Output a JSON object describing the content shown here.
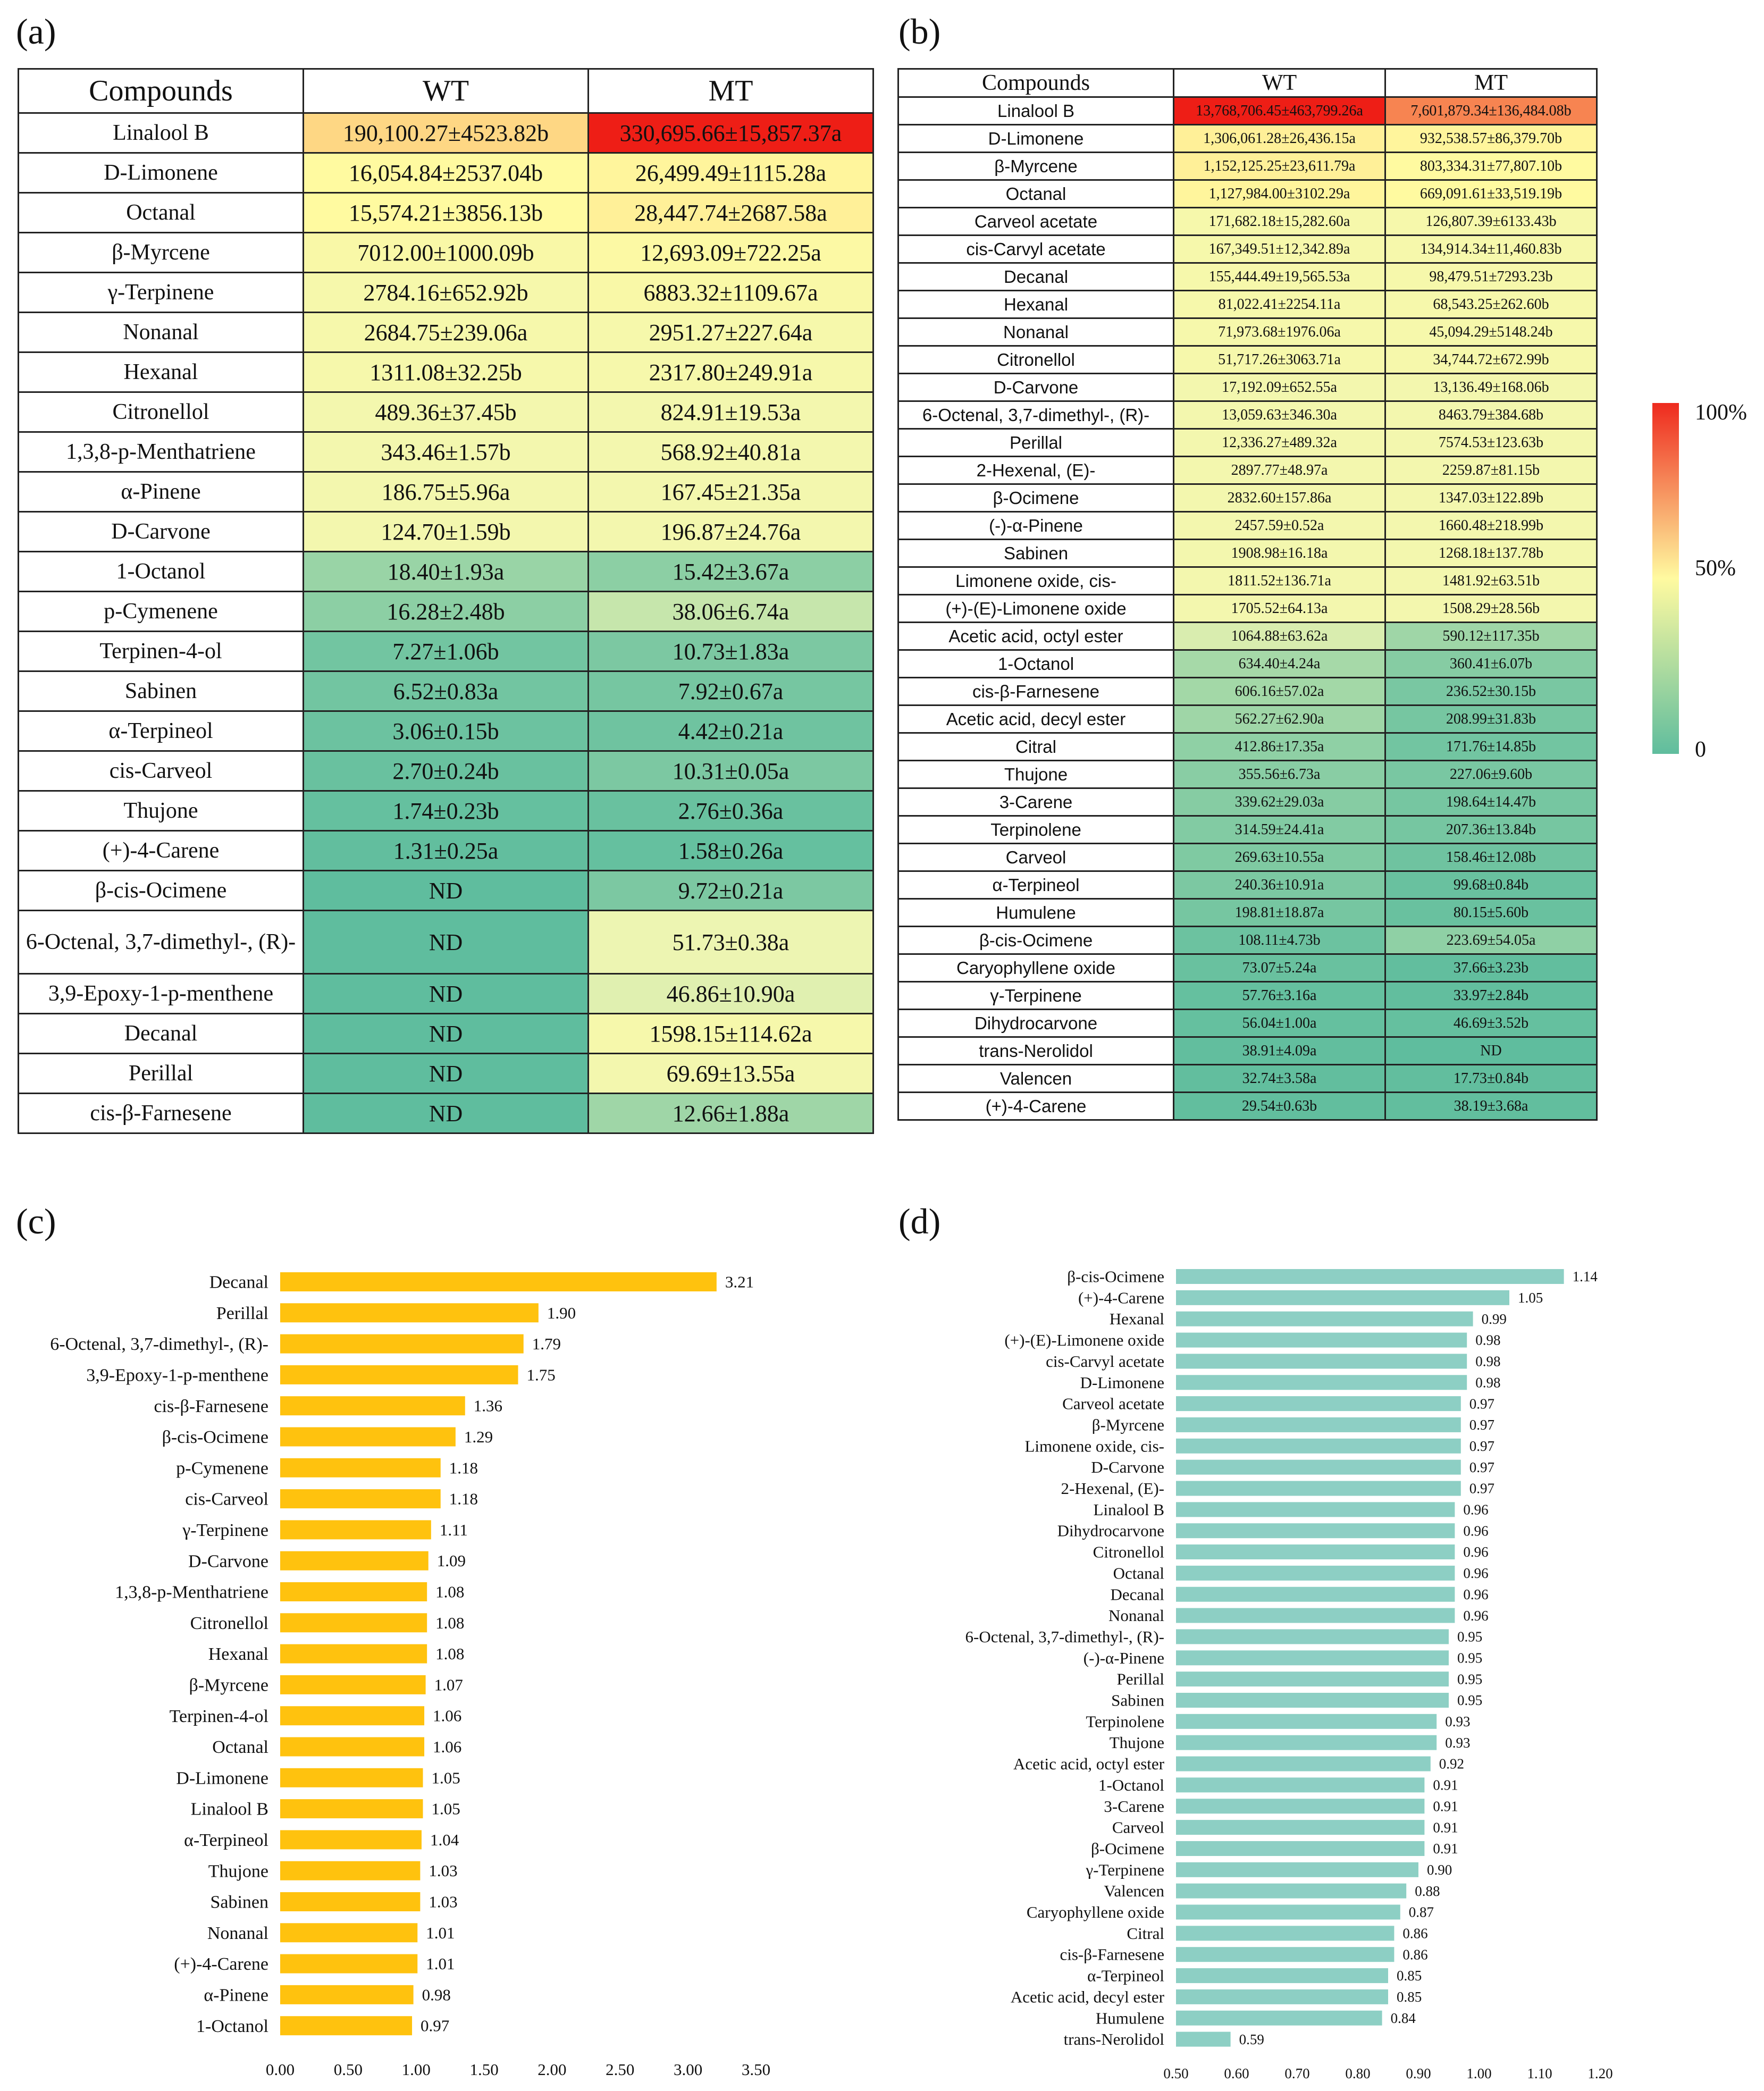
{
  "panels": {
    "a": "(a)",
    "b": "(b)",
    "c": "(c)",
    "d": "(d)"
  },
  "table_a": {
    "headers": [
      "Compounds",
      "WT",
      "MT"
    ],
    "rows": [
      {
        "name": "Linalool B",
        "wt": "190,100.27±4523.82b",
        "mt": "330,695.66±15,857.37a",
        "wt_pct": 0.57,
        "mt_pct": 1.0
      },
      {
        "name": "D-Limonene",
        "wt": "16,054.84±2537.04b",
        "mt": "26,499.49±1115.28a",
        "wt_pct": 0.5,
        "mt_pct": 0.51
      },
      {
        "name": "Octanal",
        "wt": "15,574.21±3856.13b",
        "mt": "28,447.74±2687.58a",
        "wt_pct": 0.5,
        "mt_pct": 0.52
      },
      {
        "name": "β-Myrcene",
        "wt": "7012.00±1000.09b",
        "mt": "12,693.09±722.25a",
        "wt_pct": 0.48,
        "mt_pct": 0.49
      },
      {
        "name": "γ-Terpinene",
        "wt": "2784.16±652.92b",
        "mt": "6883.32±1109.67a",
        "wt_pct": 0.47,
        "mt_pct": 0.48
      },
      {
        "name": "Nonanal",
        "wt": "2684.75±239.06a",
        "mt": "2951.27±227.64a",
        "wt_pct": 0.47,
        "mt_pct": 0.47
      },
      {
        "name": "Hexanal",
        "wt": "1311.08±32.25b",
        "mt": "2317.80±249.91a",
        "wt_pct": 0.47,
        "mt_pct": 0.47
      },
      {
        "name": "Citronellol",
        "wt": "489.36±37.45b",
        "mt": "824.91±19.53a",
        "wt_pct": 0.46,
        "mt_pct": 0.46
      },
      {
        "name": "1,3,8-p-Menthatriene",
        "wt": "343.46±1.57b",
        "mt": "568.92±40.81a",
        "wt_pct": 0.46,
        "mt_pct": 0.46
      },
      {
        "name": "α-Pinene",
        "wt": "186.75±5.96a",
        "mt": "167.45±21.35a",
        "wt_pct": 0.46,
        "mt_pct": 0.46
      },
      {
        "name": "D-Carvone",
        "wt": "124.70±1.59b",
        "mt": "196.87±24.76a",
        "wt_pct": 0.46,
        "mt_pct": 0.46
      },
      {
        "name": "1-Octanol",
        "wt": "18.40±1.93a",
        "mt": "15.42±3.67a",
        "wt_pct": 0.18,
        "mt_pct": 0.14
      },
      {
        "name": "p-Cymenene",
        "wt": "16.28±2.48b",
        "mt": "38.06±6.74a",
        "wt_pct": 0.14,
        "mt_pct": 0.32
      },
      {
        "name": "Terpinen-4-ol",
        "wt": "7.27±1.06b",
        "mt": "10.73±1.83a",
        "wt_pct": 0.06,
        "mt_pct": 0.09
      },
      {
        "name": "Sabinen",
        "wt": "6.52±0.83a",
        "mt": "7.92±0.67a",
        "wt_pct": 0.06,
        "mt_pct": 0.07
      },
      {
        "name": "α-Terpineol",
        "wt": "3.06±0.15b",
        "mt": "4.42±0.21a",
        "wt_pct": 0.04,
        "mt_pct": 0.05
      },
      {
        "name": "cis-Carveol",
        "wt": "2.70±0.24b",
        "mt": "10.31±0.05a",
        "wt_pct": 0.03,
        "mt_pct": 0.09
      },
      {
        "name": "Thujone",
        "wt": "1.74±0.23b",
        "mt": "2.76±0.36a",
        "wt_pct": 0.02,
        "mt_pct": 0.03
      },
      {
        "name": "(+)-4-Carene",
        "wt": "1.31±0.25a",
        "mt": "1.58±0.26a",
        "wt_pct": 0.01,
        "mt_pct": 0.02
      },
      {
        "name": "β-cis-Ocimene",
        "wt": "ND",
        "mt": "9.72±0.21a",
        "wt_pct": 0.0,
        "mt_pct": 0.09
      },
      {
        "name": "6-Octenal, 3,7-dimethyl-, (R)-",
        "wt": "ND",
        "mt": "51.73±0.38a",
        "wt_pct": 0.0,
        "mt_pct": 0.44
      },
      {
        "name": "3,9-Epoxy-1-p-menthene",
        "wt": "ND",
        "mt": "46.86±10.90a",
        "wt_pct": 0.0,
        "mt_pct": 0.4
      },
      {
        "name": "Decanal",
        "wt": "ND",
        "mt": "1598.15±114.62a",
        "wt_pct": 0.0,
        "mt_pct": 0.47
      },
      {
        "name": "Perillal",
        "wt": "ND",
        "mt": "69.69±13.55a",
        "wt_pct": 0.0,
        "mt_pct": 0.46
      },
      {
        "name": "cis-β-Farnesene",
        "wt": "ND",
        "mt": "12.66±1.88a",
        "wt_pct": 0.0,
        "mt_pct": 0.2
      }
    ]
  },
  "table_b": {
    "headers": [
      "Compounds",
      "WT",
      "MT"
    ],
    "rows": [
      {
        "name": "Linalool B",
        "wt": "13,768,706.45±463,799.26a",
        "mt": "7,601,879.34±136,484.08b",
        "wt_pct": 1.0,
        "mt_pct": 0.76
      },
      {
        "name": "D-Limonene",
        "wt": "1,306,061.28±26,436.15a",
        "mt": "932,538.57±86,379.70b",
        "wt_pct": 0.52,
        "mt_pct": 0.51
      },
      {
        "name": "β-Myrcene",
        "wt": "1,152,125.25±23,611.79a",
        "mt": "803,334.31±77,807.10b",
        "wt_pct": 0.52,
        "mt_pct": 0.5
      },
      {
        "name": "Octanal",
        "wt": "1,127,984.00±3102.29a",
        "mt": "669,091.61±33,519.19b",
        "wt_pct": 0.51,
        "mt_pct": 0.5
      },
      {
        "name": "Carveol acetate",
        "wt": "171,682.18±15,282.60a",
        "mt": "126,807.39±6133.43b",
        "wt_pct": 0.47,
        "mt_pct": 0.47
      },
      {
        "name": "cis-Carvyl acetate",
        "wt": "167,349.51±12,342.89a",
        "mt": "134,914.34±11,460.83b",
        "wt_pct": 0.47,
        "mt_pct": 0.47
      },
      {
        "name": "Decanal",
        "wt": "155,444.49±19,565.53a",
        "mt": "98,479.51±7293.23b",
        "wt_pct": 0.47,
        "mt_pct": 0.47
      },
      {
        "name": "Hexanal",
        "wt": "81,022.41±2254.11a",
        "mt": "68,543.25±262.60b",
        "wt_pct": 0.47,
        "mt_pct": 0.47
      },
      {
        "name": "Nonanal",
        "wt": "71,973.68±1976.06a",
        "mt": "45,094.29±5148.24b",
        "wt_pct": 0.47,
        "mt_pct": 0.47
      },
      {
        "name": "Citronellol",
        "wt": "51,717.26±3063.71a",
        "mt": "34,744.72±672.99b",
        "wt_pct": 0.47,
        "mt_pct": 0.47
      },
      {
        "name": "D-Carvone",
        "wt": "17,192.09±652.55a",
        "mt": "13,136.49±168.06b",
        "wt_pct": 0.46,
        "mt_pct": 0.46
      },
      {
        "name": "6-Octenal, 3,7-dimethyl-, (R)-",
        "wt": "13,059.63±346.30a",
        "mt": "8463.79±384.68b",
        "wt_pct": 0.46,
        "mt_pct": 0.46
      },
      {
        "name": "Perillal",
        "wt": "12,336.27±489.32a",
        "mt": "7574.53±123.63b",
        "wt_pct": 0.46,
        "mt_pct": 0.46
      },
      {
        "name": "2-Hexenal, (E)-",
        "wt": "2897.77±48.97a",
        "mt": "2259.87±81.15b",
        "wt_pct": 0.46,
        "mt_pct": 0.46
      },
      {
        "name": "β-Ocimene",
        "wt": "2832.60±157.86a",
        "mt": "1347.03±122.89b",
        "wt_pct": 0.46,
        "mt_pct": 0.46
      },
      {
        "name": "(-)-α-Pinene",
        "wt": "2457.59±0.52a",
        "mt": "1660.48±218.99b",
        "wt_pct": 0.46,
        "mt_pct": 0.46
      },
      {
        "name": "Sabinen",
        "wt": "1908.98±16.18a",
        "mt": "1268.18±137.78b",
        "wt_pct": 0.46,
        "mt_pct": 0.46
      },
      {
        "name": "Limonene oxide, cis-",
        "wt": "1811.52±136.71a",
        "mt": "1481.92±63.51b",
        "wt_pct": 0.46,
        "mt_pct": 0.46
      },
      {
        "name": "(+)-(E)-Limonene oxide",
        "wt": "1705.52±64.13a",
        "mt": "1508.29±28.56b",
        "wt_pct": 0.46,
        "mt_pct": 0.46
      },
      {
        "name": "Acetic acid, octyl ester",
        "wt": "1064.88±63.62a",
        "mt": "590.12±117.35b",
        "wt_pct": 0.38,
        "mt_pct": 0.2
      },
      {
        "name": "1-Octanol",
        "wt": "634.40±4.24a",
        "mt": "360.41±6.07b",
        "wt_pct": 0.22,
        "mt_pct": 0.12
      },
      {
        "name": "cis-β-Farnesene",
        "wt": "606.16±57.02a",
        "mt": "236.52±30.15b",
        "wt_pct": 0.21,
        "mt_pct": 0.08
      },
      {
        "name": "Acetic acid, decyl ester",
        "wt": "562.27±62.90a",
        "mt": "208.99±31.83b",
        "wt_pct": 0.2,
        "mt_pct": 0.07
      },
      {
        "name": "Citral",
        "wt": "412.86±17.35a",
        "mt": "171.76±14.85b",
        "wt_pct": 0.15,
        "mt_pct": 0.06
      },
      {
        "name": "Thujone",
        "wt": "355.56±6.73a",
        "mt": "227.06±9.60b",
        "wt_pct": 0.13,
        "mt_pct": 0.08
      },
      {
        "name": "3-Carene",
        "wt": "339.62±29.03a",
        "mt": "198.64±14.47b",
        "wt_pct": 0.12,
        "mt_pct": 0.07
      },
      {
        "name": "Terpinolene",
        "wt": "314.59±24.41a",
        "mt": "207.36±13.84b",
        "wt_pct": 0.11,
        "mt_pct": 0.07
      },
      {
        "name": "Carveol",
        "wt": "269.63±10.55a",
        "mt": "158.46±12.08b",
        "wt_pct": 0.1,
        "mt_pct": 0.05
      },
      {
        "name": "α-Terpineol",
        "wt": "240.36±10.91a",
        "mt": "99.68±0.84b",
        "wt_pct": 0.09,
        "mt_pct": 0.03
      },
      {
        "name": "Humulene",
        "wt": "198.81±18.87a",
        "mt": "80.15±5.60b",
        "wt_pct": 0.07,
        "mt_pct": 0.03
      },
      {
        "name": "β-cis-Ocimene",
        "wt": "108.11±4.73b",
        "mt": "223.69±54.05a",
        "wt_pct": 0.04,
        "mt_pct": 0.15
      },
      {
        "name": "Caryophyllene oxide",
        "wt": "73.07±5.24a",
        "mt": "37.66±3.23b",
        "wt_pct": 0.03,
        "mt_pct": 0.01
      },
      {
        "name": "γ-Terpinene",
        "wt": "57.76±3.16a",
        "mt": "33.97±2.84b",
        "wt_pct": 0.02,
        "mt_pct": 0.01
      },
      {
        "name": "Dihydrocarvone",
        "wt": "56.04±1.00a",
        "mt": "46.69±3.52b",
        "wt_pct": 0.02,
        "mt_pct": 0.02
      },
      {
        "name": "trans-Nerolidol",
        "wt": "38.91±4.09a",
        "mt": "ND",
        "wt_pct": 0.01,
        "mt_pct": 0.0
      },
      {
        "name": "Valencen",
        "wt": "32.74±3.58a",
        "mt": "17.73±0.84b",
        "wt_pct": 0.01,
        "mt_pct": 0.01
      },
      {
        "name": "(+)-4-Carene",
        "wt": "29.54±0.63b",
        "mt": "38.19±3.68a",
        "wt_pct": 0.01,
        "mt_pct": 0.01
      }
    ]
  },
  "legend": {
    "labels": [
      "100%",
      "50%",
      "0"
    ],
    "colors": [
      "#ee2a1e",
      "#fffaa0",
      "#5fbd9e"
    ]
  },
  "chart_data": [
    {
      "type": "bar",
      "orientation": "horizontal",
      "panel": "c",
      "color": "#ffc20e",
      "categories": [
        "Decanal",
        "Perillal",
        "6-Octenal, 3,7-dimethyl-, (R)-",
        "3,9-Epoxy-1-p-menthene",
        "cis-β-Farnesene",
        "β-cis-Ocimene",
        "p-Cymenene",
        "cis-Carveol",
        "γ-Terpinene",
        "D-Carvone",
        "1,3,8-p-Menthatriene",
        "Citronellol",
        "Hexanal",
        "β-Myrcene",
        "Terpinen-4-ol",
        "Octanal",
        "D-Limonene",
        "Linalool B",
        "α-Terpineol",
        "Thujone",
        "Sabinen",
        "Nonanal",
        "(+)-4-Carene",
        "α-Pinene",
        "1-Octanol"
      ],
      "values": [
        3.21,
        1.9,
        1.79,
        1.75,
        1.36,
        1.29,
        1.18,
        1.18,
        1.11,
        1.09,
        1.08,
        1.08,
        1.08,
        1.07,
        1.06,
        1.06,
        1.05,
        1.05,
        1.04,
        1.03,
        1.03,
        1.01,
        1.01,
        0.98,
        0.97
      ],
      "labels": [
        "3.21",
        "1.90",
        "1.79",
        "1.75",
        "1.36",
        "1.29",
        "1.18",
        "1.18",
        "1.11",
        "1.09",
        "1.08",
        "1.08",
        "1.08",
        "1.07",
        "1.06",
        "1.06",
        "1.05",
        "1.05",
        "1.04",
        "1.03",
        "1.03",
        "1.01",
        "1.01",
        "0.98",
        "0.97"
      ],
      "xlim": [
        0,
        3.5
      ],
      "ticks": [
        "0.00",
        "0.50",
        "1.00",
        "1.50",
        "2.00",
        "2.50",
        "3.00",
        "3.50"
      ]
    },
    {
      "type": "bar",
      "orientation": "horizontal",
      "panel": "d",
      "color": "#8dcfc4",
      "categories": [
        "β-cis-Ocimene",
        "(+)-4-Carene",
        "Hexanal",
        "(+)-(E)-Limonene oxide",
        "cis-Carvyl acetate",
        "D-Limonene",
        "Carveol acetate",
        "β-Myrcene",
        "Limonene oxide, cis-",
        "D-Carvone",
        "2-Hexenal, (E)-",
        "Linalool B",
        "Dihydrocarvone",
        "Citronellol",
        "Octanal",
        "Decanal",
        "Nonanal",
        "6-Octenal, 3,7-dimethyl-, (R)-",
        "(-)-α-Pinene",
        "Perillal",
        "Sabinen",
        "Terpinolene",
        "Thujone",
        "Acetic acid, octyl ester",
        "1-Octanol",
        "3-Carene",
        "Carveol",
        "β-Ocimene",
        "γ-Terpinene",
        "Valencen",
        "Caryophyllene oxide",
        "Citral",
        "cis-β-Farnesene",
        "α-Terpineol",
        "Acetic acid, decyl ester",
        "Humulene",
        "trans-Nerolidol"
      ],
      "values": [
        1.14,
        1.05,
        0.99,
        0.98,
        0.98,
        0.98,
        0.97,
        0.97,
        0.97,
        0.97,
        0.97,
        0.96,
        0.96,
        0.96,
        0.96,
        0.96,
        0.96,
        0.95,
        0.95,
        0.95,
        0.95,
        0.93,
        0.93,
        0.92,
        0.91,
        0.91,
        0.91,
        0.91,
        0.9,
        0.88,
        0.87,
        0.86,
        0.86,
        0.85,
        0.85,
        0.84,
        0.59
      ],
      "labels": [
        "1.14",
        "1.05",
        "0.99",
        "0.98",
        "0.98",
        "0.98",
        "0.97",
        "0.97",
        "0.97",
        "0.97",
        "0.97",
        "0.96",
        "0.96",
        "0.96",
        "0.96",
        "0.96",
        "0.96",
        "0.95",
        "0.95",
        "0.95",
        "0.95",
        "0.93",
        "0.93",
        "0.92",
        "0.91",
        "0.91",
        "0.91",
        "0.91",
        "0.90",
        "0.88",
        "0.87",
        "0.86",
        "0.86",
        "0.85",
        "0.85",
        "0.84",
        "0.59"
      ],
      "xlim": [
        0.5,
        1.2
      ],
      "ticks": [
        "0.50",
        "0.60",
        "0.70",
        "0.80",
        "0.90",
        "1.00",
        "1.10",
        "1.20"
      ]
    }
  ]
}
